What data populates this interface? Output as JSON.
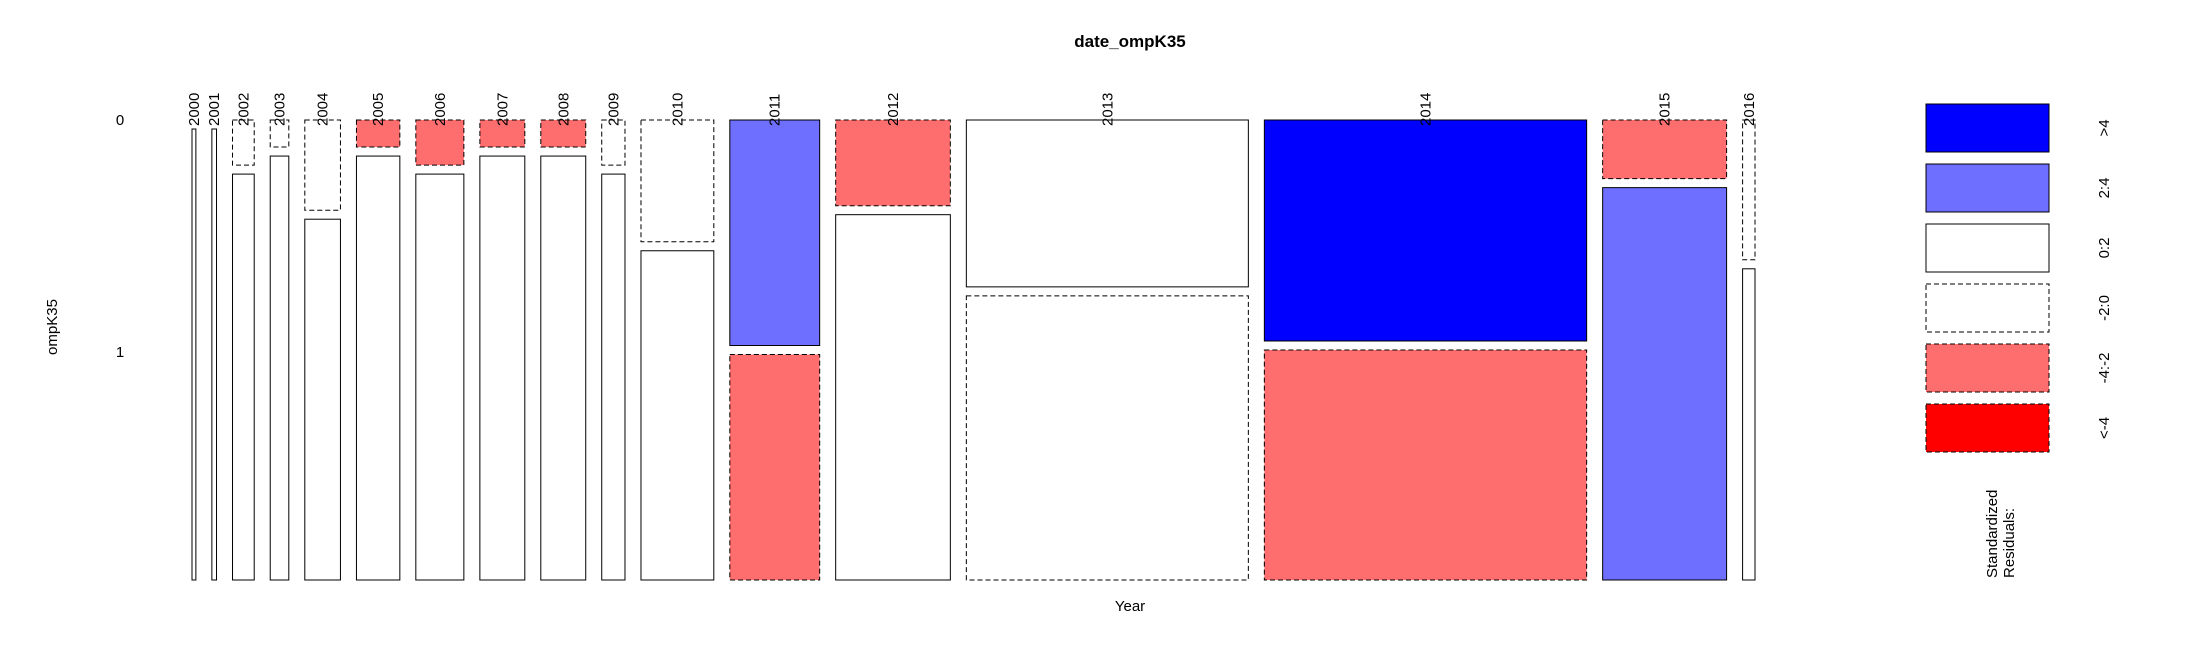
{
  "chart_data": {
    "type": "mosaic",
    "title": "date_ompK35",
    "xlabel": "Year",
    "ylabel": "ompK35",
    "row_levels": [
      "0",
      "1"
    ],
    "columns": [
      {
        "year": "2000",
        "width": 0.0025,
        "split": 0.0,
        "residual_classes": [
          "-2:0",
          "0:2"
        ]
      },
      {
        "year": "2001",
        "width": 0.003,
        "split": 0.0,
        "residual_classes": [
          "-2:0",
          "0:2"
        ]
      },
      {
        "year": "2002",
        "width": 0.014,
        "split": 0.1,
        "residual_classes": [
          "-2:0",
          "0:2"
        ]
      },
      {
        "year": "2003",
        "width": 0.012,
        "split": 0.06,
        "residual_classes": [
          "-2:0",
          "0:2"
        ]
      },
      {
        "year": "2004",
        "width": 0.023,
        "split": 0.2,
        "residual_classes": [
          "-2:0",
          "0:2"
        ]
      },
      {
        "year": "2005",
        "width": 0.028,
        "split": 0.06,
        "residual_classes": [
          "-4:-2",
          "0:2"
        ]
      },
      {
        "year": "2006",
        "width": 0.031,
        "split": 0.1,
        "residual_classes": [
          "-4:-2",
          "0:2"
        ]
      },
      {
        "year": "2007",
        "width": 0.029,
        "split": 0.06,
        "residual_classes": [
          "-4:-2",
          "0:2"
        ]
      },
      {
        "year": "2008",
        "width": 0.029,
        "split": 0.06,
        "residual_classes": [
          "-4:-2",
          "0:2"
        ]
      },
      {
        "year": "2009",
        "width": 0.015,
        "split": 0.1,
        "residual_classes": [
          "-2:0",
          "0:2"
        ]
      },
      {
        "year": "2010",
        "width": 0.047,
        "split": 0.27,
        "residual_classes": [
          "-2:0",
          "0:2"
        ]
      },
      {
        "year": "2011",
        "width": 0.058,
        "split": 0.5,
        "residual_classes": [
          "2:4",
          "-4:-2"
        ]
      },
      {
        "year": "2012",
        "width": 0.074,
        "split": 0.19,
        "residual_classes": [
          "-4:-2",
          "0:2"
        ]
      },
      {
        "year": "2013",
        "width": 0.182,
        "split": 0.37,
        "residual_classes": [
          "0:2",
          "-2:0"
        ]
      },
      {
        "year": "2014",
        "width": 0.208,
        "split": 0.49,
        "residual_classes": [
          ">4",
          "-4:-2"
        ]
      },
      {
        "year": "2015",
        "width": 0.08,
        "split": 0.13,
        "residual_classes": [
          "-4:-2",
          "2:4"
        ]
      },
      {
        "year": "2016",
        "width": 0.008,
        "split": 0.31,
        "residual_classes": [
          "-2:0",
          "0:2"
        ]
      }
    ],
    "legend": {
      "title": [
        "Standardized",
        "Residuals:"
      ],
      "placement": "right",
      "entries": [
        {
          "label": ">4",
          "color": "#0000FF",
          "dashed": false
        },
        {
          "label": "2:4",
          "color": "#6E6EFF",
          "dashed": false
        },
        {
          "label": "0:2",
          "color": "#FFFFFF",
          "dashed": false
        },
        {
          "label": "-2:0",
          "color": "#FFFFFF",
          "dashed": true
        },
        {
          "label": "-4:-2",
          "color": "#FF6E6E",
          "dashed": true
        },
        {
          "label": "<-4",
          "color": "#FF0000",
          "dashed": true
        }
      ]
    }
  }
}
